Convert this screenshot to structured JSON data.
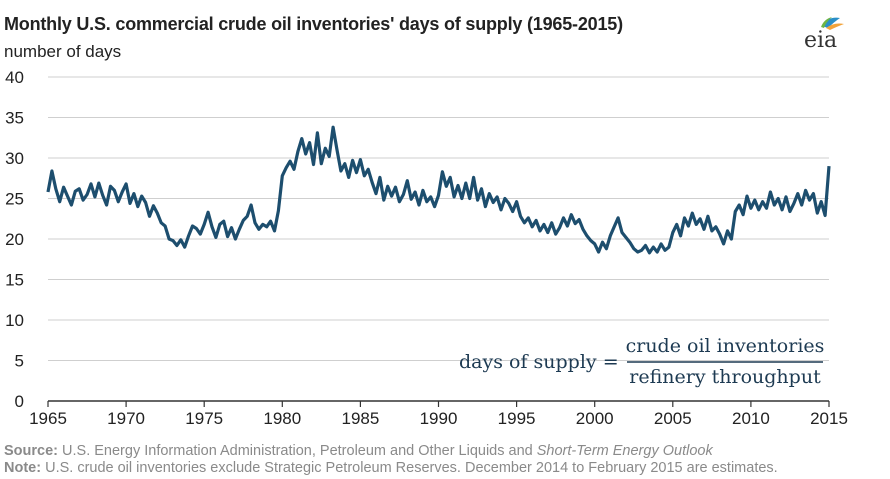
{
  "chart_data": {
    "type": "line",
    "title": "Monthly U.S. commercial crude oil inventories' days of supply (1965-2015)",
    "ylabel": "number of days",
    "xlabel": "",
    "xlim": [
      1965,
      2015
    ],
    "ylim": [
      0,
      40
    ],
    "x_ticks": [
      "1965",
      "1970",
      "1975",
      "1980",
      "1985",
      "1990",
      "1995",
      "2000",
      "2005",
      "2010",
      "2015"
    ],
    "y_ticks": [
      "0",
      "5",
      "10",
      "15",
      "20",
      "25",
      "30",
      "35",
      "40"
    ],
    "grid": "horizontal",
    "line_color": "#1d4e6e",
    "annotation": {
      "lhs": "days of supply =",
      "numerator": "crude oil inventories",
      "denominator": "refinery throughput"
    },
    "series": [
      {
        "name": "",
        "points": [
          [
            1965.0,
            25.8
          ],
          [
            1965.25,
            28.4
          ],
          [
            1965.5,
            26.2
          ],
          [
            1965.75,
            24.6
          ],
          [
            1966.0,
            26.4
          ],
          [
            1966.25,
            25.3
          ],
          [
            1966.5,
            24.2
          ],
          [
            1966.75,
            25.9
          ],
          [
            1967.0,
            26.2
          ],
          [
            1967.25,
            24.8
          ],
          [
            1967.5,
            25.5
          ],
          [
            1967.75,
            26.8
          ],
          [
            1968.0,
            25.2
          ],
          [
            1968.25,
            26.9
          ],
          [
            1968.5,
            25.4
          ],
          [
            1968.75,
            24.2
          ],
          [
            1969.0,
            26.5
          ],
          [
            1969.25,
            26.0
          ],
          [
            1969.5,
            24.6
          ],
          [
            1969.75,
            25.8
          ],
          [
            1970.0,
            26.8
          ],
          [
            1970.25,
            24.4
          ],
          [
            1970.5,
            25.6
          ],
          [
            1970.75,
            24.0
          ],
          [
            1971.0,
            25.3
          ],
          [
            1971.25,
            24.5
          ],
          [
            1971.5,
            22.8
          ],
          [
            1971.75,
            24.1
          ],
          [
            1972.0,
            23.2
          ],
          [
            1972.25,
            22.0
          ],
          [
            1972.5,
            21.6
          ],
          [
            1972.75,
            20.0
          ],
          [
            1973.0,
            19.8
          ],
          [
            1973.25,
            19.2
          ],
          [
            1973.5,
            19.9
          ],
          [
            1973.75,
            19.0
          ],
          [
            1974.0,
            20.4
          ],
          [
            1974.25,
            21.6
          ],
          [
            1974.5,
            21.3
          ],
          [
            1974.75,
            20.6
          ],
          [
            1975.0,
            21.8
          ],
          [
            1975.25,
            23.3
          ],
          [
            1975.5,
            21.5
          ],
          [
            1975.75,
            20.2
          ],
          [
            1976.0,
            21.8
          ],
          [
            1976.25,
            22.2
          ],
          [
            1976.5,
            20.3
          ],
          [
            1976.75,
            21.4
          ],
          [
            1977.0,
            20.0
          ],
          [
            1977.25,
            21.2
          ],
          [
            1977.5,
            22.3
          ],
          [
            1977.75,
            22.8
          ],
          [
            1978.0,
            24.2
          ],
          [
            1978.25,
            22.0
          ],
          [
            1978.5,
            21.2
          ],
          [
            1978.75,
            21.8
          ],
          [
            1979.0,
            21.5
          ],
          [
            1979.25,
            22.2
          ],
          [
            1979.5,
            21.0
          ],
          [
            1979.75,
            23.5
          ],
          [
            1980.0,
            27.8
          ],
          [
            1980.25,
            28.8
          ],
          [
            1980.5,
            29.6
          ],
          [
            1980.75,
            28.6
          ],
          [
            1981.0,
            30.8
          ],
          [
            1981.25,
            32.4
          ],
          [
            1981.5,
            30.5
          ],
          [
            1981.75,
            31.9
          ],
          [
            1982.0,
            29.2
          ],
          [
            1982.25,
            33.1
          ],
          [
            1982.5,
            29.3
          ],
          [
            1982.75,
            31.2
          ],
          [
            1983.0,
            30.2
          ],
          [
            1983.25,
            33.8
          ],
          [
            1983.5,
            31.0
          ],
          [
            1983.75,
            28.4
          ],
          [
            1984.0,
            29.3
          ],
          [
            1984.25,
            27.6
          ],
          [
            1984.5,
            29.7
          ],
          [
            1984.75,
            28.2
          ],
          [
            1985.0,
            29.8
          ],
          [
            1985.25,
            27.8
          ],
          [
            1985.5,
            28.6
          ],
          [
            1985.75,
            27.0
          ],
          [
            1986.0,
            25.6
          ],
          [
            1986.25,
            27.6
          ],
          [
            1986.5,
            24.8
          ],
          [
            1986.75,
            26.5
          ],
          [
            1987.0,
            25.3
          ],
          [
            1987.25,
            26.4
          ],
          [
            1987.5,
            24.6
          ],
          [
            1987.75,
            25.5
          ],
          [
            1988.0,
            27.2
          ],
          [
            1988.25,
            24.9
          ],
          [
            1988.5,
            25.8
          ],
          [
            1988.75,
            24.2
          ],
          [
            1989.0,
            26.0
          ],
          [
            1989.25,
            24.6
          ],
          [
            1989.5,
            25.2
          ],
          [
            1989.75,
            24.0
          ],
          [
            1990.0,
            25.4
          ],
          [
            1990.25,
            28.3
          ],
          [
            1990.5,
            26.5
          ],
          [
            1990.75,
            27.6
          ],
          [
            1991.0,
            25.2
          ],
          [
            1991.25,
            26.6
          ],
          [
            1991.5,
            25.0
          ],
          [
            1991.75,
            26.9
          ],
          [
            1992.0,
            25.0
          ],
          [
            1992.25,
            27.6
          ],
          [
            1992.5,
            24.8
          ],
          [
            1992.75,
            26.2
          ],
          [
            1993.0,
            24.0
          ],
          [
            1993.25,
            25.6
          ],
          [
            1993.5,
            24.5
          ],
          [
            1993.75,
            25.2
          ],
          [
            1994.0,
            23.6
          ],
          [
            1994.25,
            25.0
          ],
          [
            1994.5,
            24.4
          ],
          [
            1994.75,
            23.4
          ],
          [
            1995.0,
            24.6
          ],
          [
            1995.25,
            22.8
          ],
          [
            1995.5,
            22.0
          ],
          [
            1995.75,
            22.6
          ],
          [
            1996.0,
            21.5
          ],
          [
            1996.25,
            22.3
          ],
          [
            1996.5,
            21.0
          ],
          [
            1996.75,
            21.8
          ],
          [
            1997.0,
            20.8
          ],
          [
            1997.25,
            22.0
          ],
          [
            1997.5,
            20.6
          ],
          [
            1997.75,
            21.4
          ],
          [
            1998.0,
            22.6
          ],
          [
            1998.25,
            21.6
          ],
          [
            1998.5,
            23.0
          ],
          [
            1998.75,
            21.9
          ],
          [
            1999.0,
            22.4
          ],
          [
            1999.25,
            21.2
          ],
          [
            1999.5,
            20.4
          ],
          [
            1999.75,
            19.8
          ],
          [
            2000.0,
            19.4
          ],
          [
            2000.25,
            18.4
          ],
          [
            2000.5,
            19.6
          ],
          [
            2000.75,
            18.8
          ],
          [
            2001.0,
            20.4
          ],
          [
            2001.25,
            21.5
          ],
          [
            2001.5,
            22.6
          ],
          [
            2001.75,
            20.8
          ],
          [
            2002.0,
            20.2
          ],
          [
            2002.25,
            19.6
          ],
          [
            2002.5,
            18.8
          ],
          [
            2002.75,
            18.4
          ],
          [
            2003.0,
            18.6
          ],
          [
            2003.25,
            19.2
          ],
          [
            2003.5,
            18.3
          ],
          [
            2003.75,
            19.0
          ],
          [
            2004.0,
            18.4
          ],
          [
            2004.25,
            19.4
          ],
          [
            2004.5,
            18.6
          ],
          [
            2004.75,
            19.0
          ],
          [
            2005.0,
            20.8
          ],
          [
            2005.25,
            21.8
          ],
          [
            2005.5,
            20.4
          ],
          [
            2005.75,
            22.6
          ],
          [
            2006.0,
            21.6
          ],
          [
            2006.25,
            23.2
          ],
          [
            2006.5,
            21.8
          ],
          [
            2006.75,
            22.5
          ],
          [
            2007.0,
            21.2
          ],
          [
            2007.25,
            22.8
          ],
          [
            2007.5,
            21.0
          ],
          [
            2007.75,
            21.5
          ],
          [
            2008.0,
            20.6
          ],
          [
            2008.25,
            19.4
          ],
          [
            2008.5,
            21.0
          ],
          [
            2008.75,
            20.0
          ],
          [
            2009.0,
            23.4
          ],
          [
            2009.25,
            24.2
          ],
          [
            2009.5,
            23.0
          ],
          [
            2009.75,
            25.3
          ],
          [
            2010.0,
            23.8
          ],
          [
            2010.25,
            24.8
          ],
          [
            2010.5,
            23.6
          ],
          [
            2010.75,
            24.6
          ],
          [
            2011.0,
            23.8
          ],
          [
            2011.25,
            25.8
          ],
          [
            2011.5,
            24.2
          ],
          [
            2011.75,
            25.0
          ],
          [
            2012.0,
            23.6
          ],
          [
            2012.25,
            25.2
          ],
          [
            2012.5,
            23.4
          ],
          [
            2012.75,
            24.4
          ],
          [
            2013.0,
            25.6
          ],
          [
            2013.25,
            24.2
          ],
          [
            2013.5,
            26.0
          ],
          [
            2013.75,
            24.8
          ],
          [
            2014.0,
            25.6
          ],
          [
            2014.25,
            23.2
          ],
          [
            2014.5,
            24.6
          ],
          [
            2014.75,
            22.9
          ],
          [
            2015.0,
            29.0
          ]
        ]
      }
    ]
  },
  "footer": {
    "source_label": "Source:",
    "source_text": " U.S. Energy Information Administration, Petroleum and Other Liquids and ",
    "source_italic": "Short-Term Energy Outlook",
    "note_label": "Note:",
    "note_text": " U.S. crude oil inventories exclude Strategic Petroleum Reserves. December 2014 to February 2015 are estimates."
  },
  "logo": {
    "text": "eia",
    "icon": "eia-leaf-logo"
  }
}
